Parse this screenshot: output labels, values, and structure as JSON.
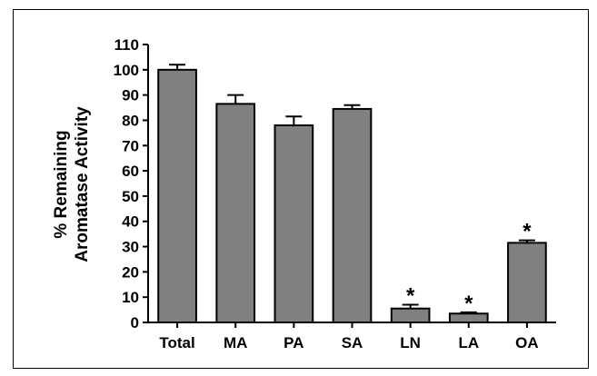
{
  "chart_data": {
    "type": "bar",
    "title": "",
    "xlabel": "",
    "ylabel": [
      "% Remaining",
      "Aromatase Activity"
    ],
    "categories": [
      "Total",
      "MA",
      "PA",
      "SA",
      "LN",
      "LA",
      "OA"
    ],
    "values": [
      100,
      86.5,
      78,
      84.5,
      5.5,
      3.5,
      31.5
    ],
    "errors": [
      2,
      3.5,
      3.5,
      1.5,
      1.5,
      0.5,
      1
    ],
    "significance": [
      "",
      "",
      "",
      "",
      "*",
      "*",
      "*"
    ],
    "ylim": [
      0,
      110
    ],
    "yticks": [
      0,
      10,
      20,
      30,
      40,
      50,
      60,
      70,
      80,
      90,
      100,
      110
    ],
    "grid": false,
    "colors": {
      "bar": "#808080",
      "outline": "#000000"
    }
  }
}
